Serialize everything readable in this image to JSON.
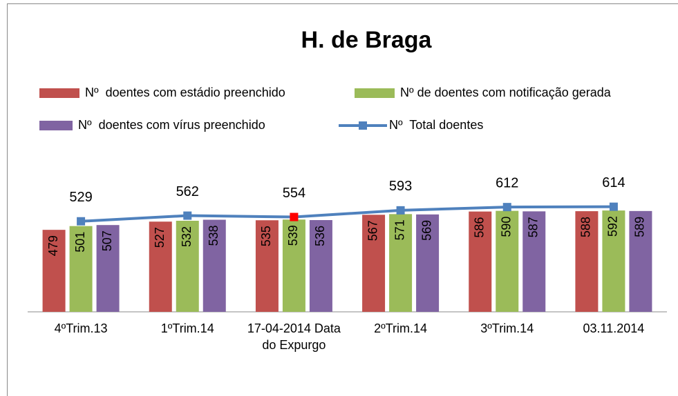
{
  "chart_data": {
    "type": "bar-line",
    "title": "H. de Braga",
    "categories": [
      "4ºTrim.13",
      "1ºTrim.14",
      "17-04-2014 Data do Expurgo",
      "2ºTrim.14",
      "3ºTrim.14",
      "03.11.2014"
    ],
    "series": [
      {
        "name": "Nº  doentes com estádio preenchido",
        "type": "bar",
        "color": "#c0504d",
        "values": [
          479,
          527,
          535,
          567,
          586,
          588
        ]
      },
      {
        "name": "Nº de doentes com notificação gerada",
        "type": "bar",
        "color": "#9bbb59",
        "values": [
          501,
          532,
          539,
          571,
          590,
          592
        ]
      },
      {
        "name": "Nº  doentes com vírus preenchido",
        "type": "bar",
        "color": "#8064a2",
        "values": [
          507,
          538,
          536,
          569,
          587,
          589
        ]
      },
      {
        "name": "Nº  Total doentes",
        "type": "line",
        "color": "#4f81bd",
        "marker_colors": [
          "#4f81bd",
          "#4f81bd",
          "#ff0000",
          "#4f81bd",
          "#4f81bd",
          "#4f81bd"
        ],
        "values": [
          529,
          562,
          554,
          593,
          612,
          614
        ]
      }
    ],
    "ylim": [
      0,
      1600
    ]
  }
}
